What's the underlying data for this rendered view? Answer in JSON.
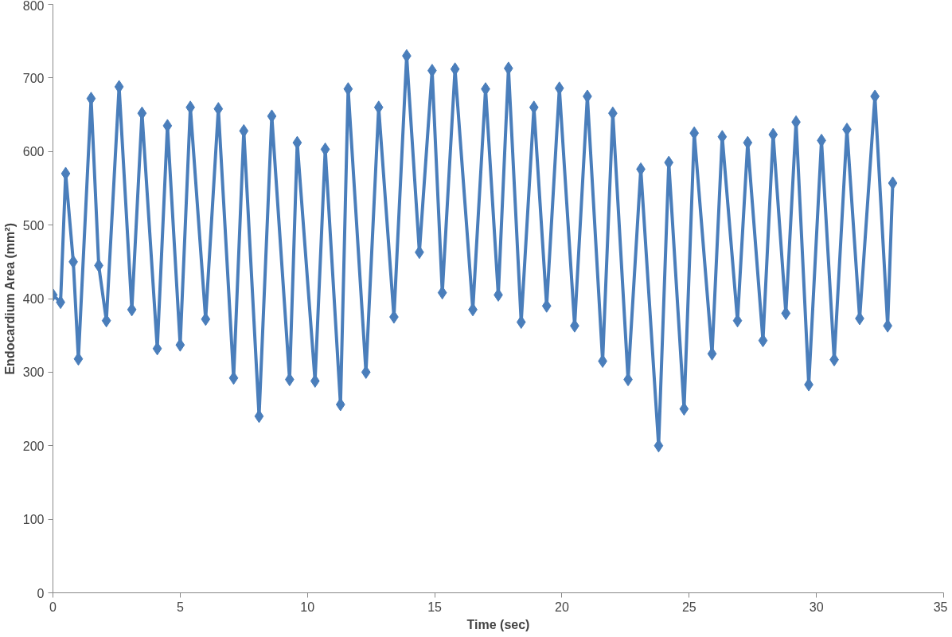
{
  "chart_data": {
    "type": "line",
    "xlabel": "Time (sec)",
    "ylabel": "Endocardium Area (mm²)",
    "xlim": [
      0,
      35
    ],
    "xticks": [
      0,
      5,
      10,
      15,
      20,
      25,
      30,
      35
    ],
    "ylim": [
      0,
      800
    ],
    "yticks": [
      0,
      100,
      200,
      300,
      400,
      500,
      600,
      700,
      800
    ],
    "grid": false,
    "marker": "diamond",
    "line_style": "solid",
    "series": [
      {
        "color": "#4a7ebb",
        "x": [
          0,
          0.3,
          0.5,
          0.8,
          1.0,
          1.5,
          1.8,
          2.1,
          2.6,
          3.1,
          3.5,
          4.1,
          4.5,
          5.0,
          5.4,
          6.0,
          6.5,
          7.1,
          7.5,
          8.1,
          8.6,
          9.3,
          9.6,
          10.3,
          10.7,
          11.3,
          11.6,
          12.3,
          12.8,
          13.4,
          13.9,
          14.4,
          14.9,
          15.3,
          15.8,
          16.5,
          17.0,
          17.5,
          17.9,
          18.4,
          18.9,
          19.4,
          19.9,
          20.5,
          21.0,
          21.6,
          22.0,
          22.6,
          23.1,
          23.8,
          24.2,
          24.8,
          25.2,
          25.9,
          26.3,
          26.9,
          27.3,
          27.9,
          28.3,
          28.8,
          29.2,
          29.7,
          30.2,
          30.7,
          31.2,
          31.7,
          32.3,
          32.8,
          33.0
        ],
        "values": [
          405,
          395,
          570,
          450,
          318,
          672,
          445,
          370,
          688,
          385,
          652,
          332,
          635,
          337,
          660,
          372,
          658,
          292,
          628,
          240,
          648,
          290,
          612,
          288,
          603,
          256,
          685,
          300,
          660,
          375,
          730,
          463,
          710,
          408,
          712,
          385,
          685,
          405,
          713,
          368,
          660,
          390,
          686,
          363,
          675,
          315,
          652,
          290,
          576,
          200,
          585,
          250,
          625,
          325,
          620,
          370,
          612,
          343,
          623,
          380,
          640,
          283,
          615,
          317,
          630,
          373,
          675,
          363,
          557
        ]
      }
    ]
  }
}
